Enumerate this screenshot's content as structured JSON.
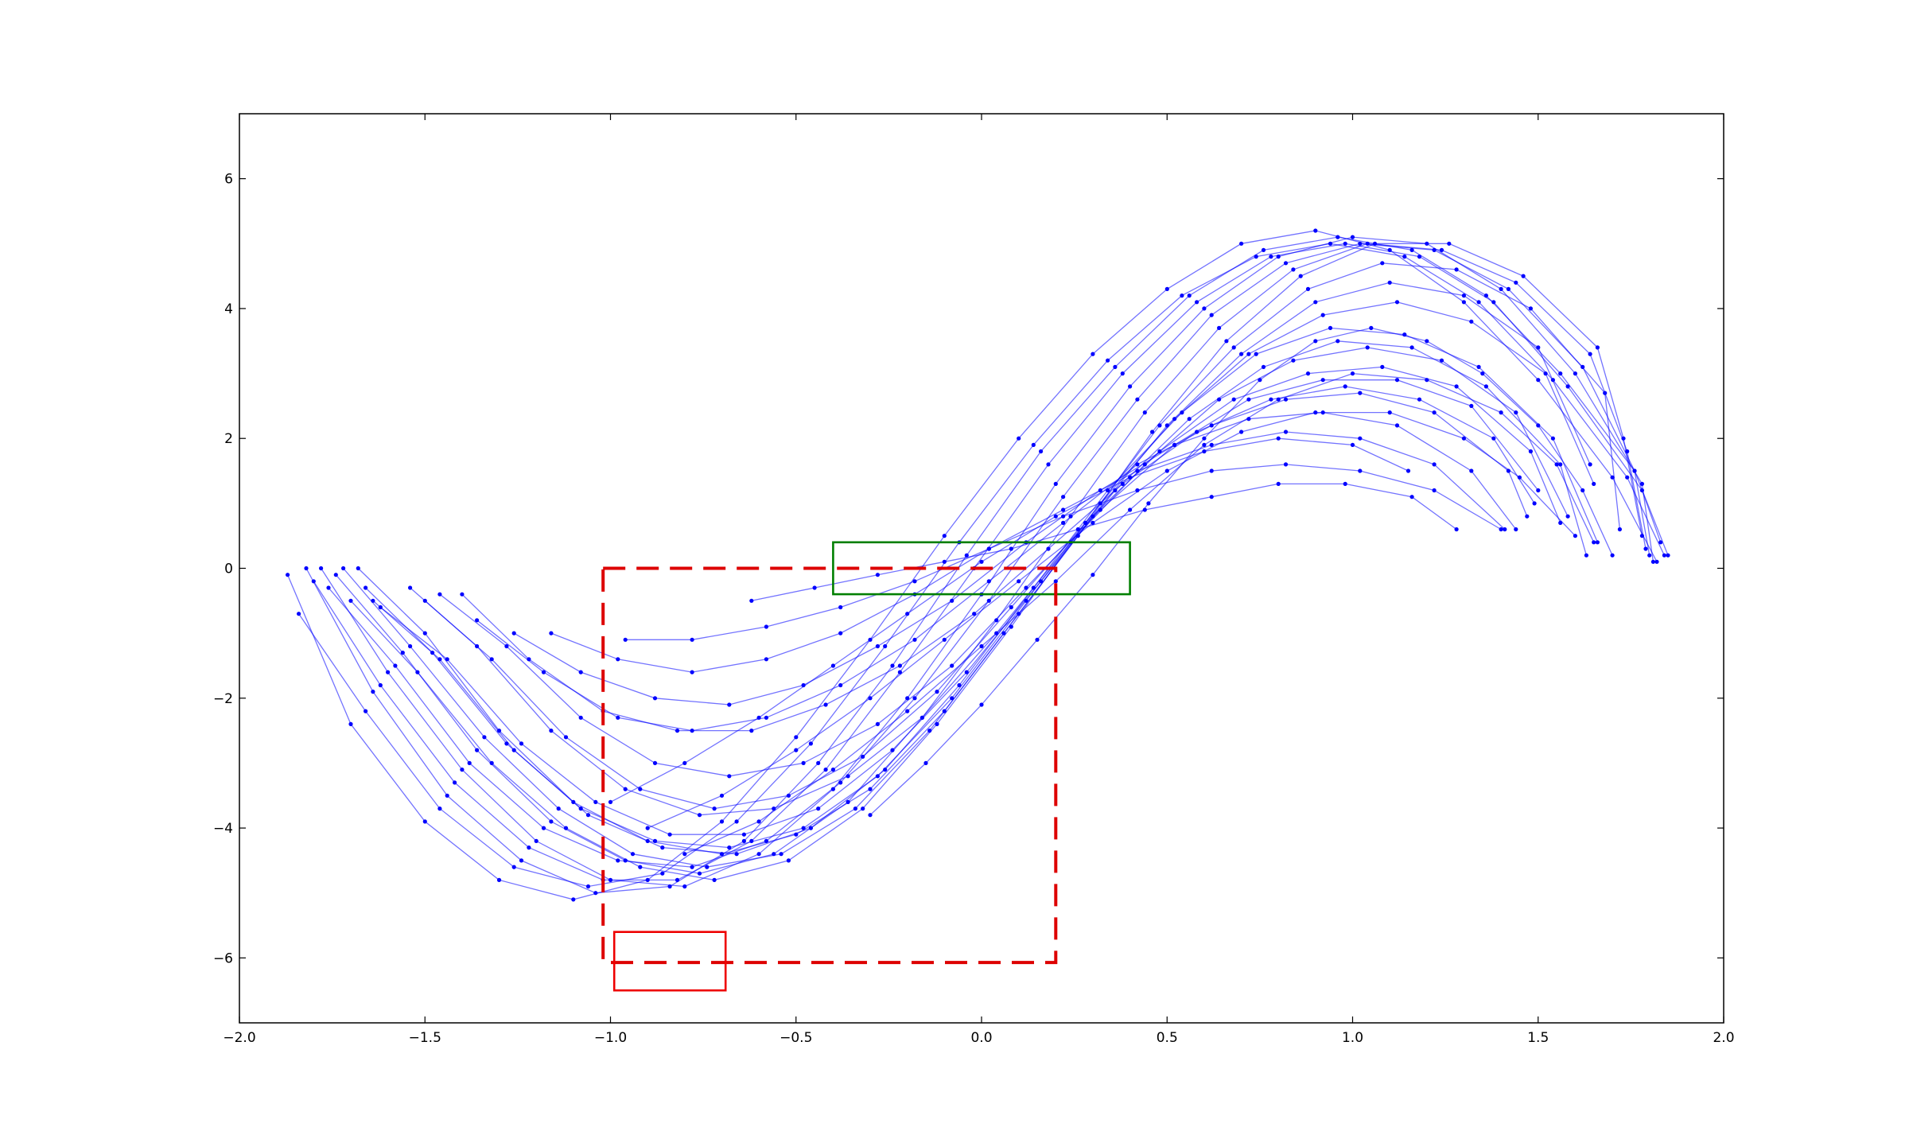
{
  "chart_data": {
    "type": "line",
    "title": "",
    "xlabel": "",
    "ylabel": "",
    "xlim": [
      -2.0,
      2.0
    ],
    "ylim": [
      -7,
      7
    ],
    "grid": false,
    "x_ticks": [
      -2.0,
      -1.5,
      -1.0,
      -0.5,
      0.0,
      0.5,
      1.0,
      1.5,
      2.0
    ],
    "x_tick_labels": [
      "−2.0",
      "−1.5",
      "−1.0",
      "−0.5",
      "0.0",
      "0.5",
      "1.0",
      "1.5",
      "2.0"
    ],
    "y_ticks": [
      -6,
      -4,
      -2,
      0,
      2,
      4,
      6
    ],
    "y_tick_labels": [
      "−6",
      "−4",
      "−2",
      "0",
      "2",
      "4",
      "6"
    ],
    "curve_family": {
      "description_visible": false,
      "color": "#0000ff",
      "marker": "dot",
      "series": [
        {
          "x": [
            -1.87,
            -1.7,
            -1.5,
            -1.3,
            -1.1,
            -0.9,
            -0.7,
            -0.5,
            -0.3,
            -0.1,
            0.1,
            0.3,
            0.5,
            0.7,
            0.9,
            1.1,
            1.3,
            1.5,
            1.7,
            1.82
          ],
          "y": [
            -0.1,
            -2.4,
            -3.9,
            -4.8,
            -5.1,
            -4.8,
            -3.9,
            -2.6,
            -1.1,
            0.5,
            2.0,
            3.3,
            4.3,
            5.0,
            5.2,
            4.9,
            4.1,
            2.9,
            1.4,
            0.1
          ]
        },
        {
          "x": [
            -1.84,
            -1.66,
            -1.46,
            -1.26,
            -1.06,
            -0.86,
            -0.66,
            -0.46,
            -0.26,
            -0.06,
            0.14,
            0.34,
            0.54,
            0.74,
            0.94,
            1.14,
            1.34,
            1.54,
            1.74,
            1.84
          ],
          "y": [
            -0.7,
            -2.2,
            -3.7,
            -4.6,
            -4.9,
            -4.7,
            -3.9,
            -2.7,
            -1.2,
            0.4,
            1.9,
            3.2,
            4.2,
            4.8,
            5.0,
            4.8,
            4.1,
            2.9,
            1.4,
            0.2
          ]
        },
        {
          "x": [
            -1.82,
            -1.64,
            -1.44,
            -1.24,
            -1.04,
            -0.84,
            -0.64,
            -0.44,
            -0.24,
            -0.04,
            0.16,
            0.36,
            0.56,
            0.76,
            0.96,
            1.16,
            1.36,
            1.56,
            1.76,
            1.85
          ],
          "y": [
            0.0,
            -1.9,
            -3.5,
            -4.5,
            -5.0,
            -4.9,
            -4.2,
            -3.0,
            -1.5,
            0.2,
            1.8,
            3.1,
            4.2,
            4.9,
            5.1,
            4.9,
            4.2,
            3.0,
            1.5,
            0.2
          ]
        },
        {
          "x": [
            -1.8,
            -1.62,
            -1.42,
            -1.22,
            -1.02,
            -0.82,
            -0.62,
            -0.42,
            -0.22,
            -0.02,
            0.18,
            0.38,
            0.58,
            0.78,
            0.98,
            1.18,
            1.38,
            1.58,
            1.78,
            1.83
          ],
          "y": [
            -0.2,
            -1.8,
            -3.3,
            -4.3,
            -4.8,
            -4.8,
            -4.2,
            -3.1,
            -1.6,
            0.0,
            1.6,
            3.0,
            4.1,
            4.8,
            5.0,
            4.8,
            4.1,
            2.8,
            1.2,
            0.4
          ]
        },
        {
          "x": [
            -1.78,
            -1.6,
            -1.4,
            -1.2,
            -1.0,
            -0.8,
            -0.6,
            -0.4,
            -0.2,
            0.0,
            0.2,
            0.4,
            0.6,
            0.8,
            1.0,
            1.2,
            1.4,
            1.6,
            1.78,
            1.81
          ],
          "y": [
            0.0,
            -1.6,
            -3.1,
            -4.2,
            -4.8,
            -4.9,
            -4.4,
            -3.4,
            -2.0,
            -0.4,
            1.3,
            2.8,
            4.0,
            4.8,
            5.1,
            5.0,
            4.3,
            3.0,
            1.3,
            0.1
          ]
        },
        {
          "x": [
            -1.76,
            -1.58,
            -1.38,
            -1.18,
            -0.98,
            -0.78,
            -0.58,
            -0.38,
            -0.18,
            0.02,
            0.22,
            0.42,
            0.62,
            0.82,
            1.02,
            1.22,
            1.42,
            1.62,
            1.76,
            1.8
          ],
          "y": [
            -0.3,
            -1.5,
            -3.0,
            -4.0,
            -4.5,
            -4.6,
            -4.2,
            -3.3,
            -2.0,
            -0.5,
            1.1,
            2.6,
            3.9,
            4.7,
            5.0,
            4.9,
            4.3,
            3.1,
            1.5,
            0.2
          ]
        },
        {
          "x": [
            -1.74,
            -1.56,
            -1.36,
            -1.16,
            -0.96,
            -0.76,
            -0.56,
            -0.36,
            -0.16,
            0.04,
            0.24,
            0.44,
            0.64,
            0.84,
            1.04,
            1.24,
            1.44,
            1.64,
            1.74,
            1.79
          ],
          "y": [
            -0.1,
            -1.3,
            -2.8,
            -3.9,
            -4.5,
            -4.7,
            -4.4,
            -3.6,
            -2.3,
            -0.8,
            0.8,
            2.4,
            3.7,
            4.6,
            5.0,
            4.9,
            4.4,
            3.3,
            1.8,
            0.3
          ]
        },
        {
          "x": [
            -1.72,
            -1.54,
            -1.34,
            -1.14,
            -0.94,
            -0.74,
            -0.54,
            -0.34,
            -0.14,
            0.06,
            0.26,
            0.46,
            0.66,
            0.86,
            1.06,
            1.26,
            1.46,
            1.66,
            1.73,
            1.78
          ],
          "y": [
            0.0,
            -1.2,
            -2.6,
            -3.7,
            -4.4,
            -4.6,
            -4.4,
            -3.7,
            -2.5,
            -1.0,
            0.5,
            2.1,
            3.5,
            4.5,
            5.0,
            5.0,
            4.5,
            3.4,
            2.0,
            0.5
          ]
        },
        {
          "x": [
            -1.7,
            -1.52,
            -1.32,
            -1.12,
            -0.92,
            -0.72,
            -0.52,
            -0.32,
            -0.12,
            0.08,
            0.28,
            0.48,
            0.68,
            0.88,
            1.08,
            1.28,
            1.48,
            1.68,
            1.72
          ],
          "y": [
            -0.5,
            -1.6,
            -3.0,
            -4.0,
            -4.6,
            -4.8,
            -4.5,
            -3.7,
            -2.4,
            -0.9,
            0.7,
            2.2,
            3.4,
            4.3,
            4.7,
            4.6,
            4.0,
            2.7,
            0.6
          ]
        },
        {
          "x": [
            -1.68,
            -1.5,
            -1.3,
            -1.1,
            -0.9,
            -0.7,
            -0.5,
            -0.3,
            -0.1,
            0.1,
            0.3,
            0.5,
            0.7,
            0.9,
            1.1,
            1.3,
            1.5,
            1.64
          ],
          "y": [
            0.0,
            -1.0,
            -2.5,
            -3.6,
            -4.2,
            -4.4,
            -4.1,
            -3.4,
            -2.2,
            -0.7,
            0.8,
            2.2,
            3.3,
            4.1,
            4.4,
            4.2,
            3.4,
            1.6
          ]
        },
        {
          "x": [
            -1.66,
            -1.48,
            -1.28,
            -1.08,
            -0.88,
            -0.68,
            -0.48,
            -0.28,
            -0.08,
            0.12,
            0.32,
            0.52,
            0.72,
            0.92,
            1.12,
            1.32,
            1.52,
            1.65
          ],
          "y": [
            -0.3,
            -1.3,
            -2.7,
            -3.7,
            -4.2,
            -4.3,
            -4.0,
            -3.2,
            -2.0,
            -0.5,
            1.0,
            2.3,
            3.3,
            3.9,
            4.1,
            3.8,
            3.0,
            1.3
          ]
        },
        {
          "x": [
            -1.64,
            -1.46,
            -1.26,
            -1.06,
            -0.86,
            -0.66,
            -0.46,
            -0.26,
            -0.06,
            0.14,
            0.34,
            0.54,
            0.74,
            0.94,
            1.14,
            1.34,
            1.54,
            1.66
          ],
          "y": [
            -0.5,
            -1.4,
            -2.8,
            -3.8,
            -4.3,
            -4.4,
            -4.0,
            -3.1,
            -1.8,
            -0.3,
            1.2,
            2.4,
            3.3,
            3.7,
            3.6,
            3.1,
            2.0,
            0.4
          ]
        },
        {
          "x": [
            -1.62,
            -1.44,
            -1.24,
            -1.04,
            -0.84,
            -0.64,
            -0.44,
            -0.24,
            -0.04,
            0.16,
            0.36,
            0.56,
            0.76,
            0.96,
            1.16,
            1.36,
            1.56,
            1.63
          ],
          "y": [
            -0.6,
            -1.4,
            -2.7,
            -3.6,
            -4.1,
            -4.1,
            -3.7,
            -2.8,
            -1.6,
            -0.2,
            1.2,
            2.3,
            3.1,
            3.5,
            3.4,
            2.8,
            1.6,
            0.2
          ]
        },
        {
          "x": [
            -1.54,
            -1.36,
            -1.16,
            -0.96,
            -0.76,
            -0.56,
            -0.36,
            -0.16,
            0.04,
            0.24,
            0.44,
            0.64,
            0.84,
            1.04,
            1.24,
            1.44,
            1.58
          ],
          "y": [
            -0.3,
            -1.2,
            -2.5,
            -3.4,
            -3.8,
            -3.7,
            -3.2,
            -2.3,
            -1.0,
            0.4,
            1.6,
            2.6,
            3.2,
            3.4,
            3.2,
            2.4,
            0.8
          ]
        },
        {
          "x": [
            -1.5,
            -1.32,
            -1.12,
            -0.92,
            -0.72,
            -0.52,
            -0.32,
            -0.12,
            0.08,
            0.28,
            0.48,
            0.68,
            0.88,
            1.08,
            1.28,
            1.48,
            1.56
          ],
          "y": [
            -0.5,
            -1.4,
            -2.6,
            -3.4,
            -3.7,
            -3.5,
            -2.9,
            -1.9,
            -0.6,
            0.7,
            1.8,
            2.6,
            3.0,
            3.1,
            2.8,
            1.8,
            0.7
          ]
        },
        {
          "x": [
            -1.46,
            -1.28,
            -1.08,
            -0.88,
            -0.68,
            -0.48,
            -0.28,
            -0.08,
            0.12,
            0.32,
            0.52,
            0.72,
            0.92,
            1.12,
            1.32,
            1.5
          ],
          "y": [
            -0.4,
            -1.2,
            -2.3,
            -3.0,
            -3.2,
            -3.0,
            -2.4,
            -1.5,
            -0.3,
            0.9,
            1.9,
            2.6,
            2.9,
            2.9,
            2.5,
            1.2
          ]
        },
        {
          "x": [
            -1.4,
            -1.22,
            -1.02,
            -0.82,
            -0.62,
            -0.42,
            -0.22,
            -0.02,
            0.18,
            0.38,
            0.58,
            0.78,
            0.98,
            1.18,
            1.38,
            1.49
          ],
          "y": [
            -0.4,
            -1.4,
            -2.2,
            -2.5,
            -2.5,
            -2.1,
            -1.5,
            -0.7,
            0.3,
            1.3,
            2.1,
            2.6,
            2.8,
            2.6,
            2.0,
            1.0
          ]
        },
        {
          "x": [
            -1.36,
            -1.18,
            -0.98,
            -0.78,
            -0.58,
            -0.38,
            -0.18,
            0.02,
            0.22,
            0.42,
            0.62,
            0.82,
            1.02,
            1.22,
            1.42,
            1.47
          ],
          "y": [
            -0.8,
            -1.6,
            -2.3,
            -2.5,
            -2.3,
            -1.8,
            -1.1,
            -0.2,
            0.7,
            1.6,
            2.2,
            2.6,
            2.7,
            2.4,
            1.5,
            0.8
          ]
        },
        {
          "x": [
            -1.26,
            -1.08,
            -0.88,
            -0.68,
            -0.48,
            -0.28,
            -0.08,
            0.12,
            0.32,
            0.52,
            0.72,
            0.92,
            1.12,
            1.32,
            1.44
          ],
          "y": [
            -1.0,
            -1.6,
            -2.0,
            -2.1,
            -1.8,
            -1.2,
            -0.5,
            0.4,
            1.2,
            1.9,
            2.3,
            2.4,
            2.2,
            1.5,
            0.6
          ]
        },
        {
          "x": [
            -1.16,
            -0.98,
            -0.78,
            -0.58,
            -0.38,
            -0.18,
            0.02,
            0.22,
            0.42,
            0.62,
            0.82,
            1.02,
            1.22,
            1.41
          ],
          "y": [
            -1.0,
            -1.4,
            -1.6,
            -1.4,
            -1.0,
            -0.4,
            0.3,
            0.9,
            1.5,
            1.9,
            2.1,
            2.0,
            1.6,
            0.6
          ]
        },
        {
          "x": [
            -0.96,
            -0.78,
            -0.58,
            -0.38,
            -0.18,
            0.02,
            0.22,
            0.42,
            0.62,
            0.82,
            1.02,
            1.22,
            1.4
          ],
          "y": [
            -1.1,
            -1.1,
            -0.9,
            -0.6,
            -0.2,
            0.3,
            0.8,
            1.2,
            1.5,
            1.6,
            1.5,
            1.2,
            0.6
          ]
        },
        {
          "x": [
            -0.62,
            -0.45,
            -0.28,
            -0.1,
            0.08,
            0.26,
            0.44,
            0.62,
            0.8,
            0.98,
            1.16,
            1.28
          ],
          "y": [
            -0.5,
            -0.3,
            -0.1,
            0.1,
            0.3,
            0.6,
            0.9,
            1.1,
            1.3,
            1.3,
            1.1,
            0.6
          ]
        },
        {
          "x": [
            -1.0,
            -0.8,
            -0.6,
            -0.4,
            -0.2,
            0.0,
            0.2,
            0.4,
            0.6,
            0.8,
            1.0,
            1.15
          ],
          "y": [
            -3.6,
            -3.0,
            -2.3,
            -1.5,
            -0.7,
            0.1,
            0.8,
            1.4,
            1.8,
            2.0,
            1.9,
            1.5
          ]
        },
        {
          "x": [
            -0.9,
            -0.7,
            -0.5,
            -0.3,
            -0.1,
            0.1,
            0.3,
            0.5,
            0.7,
            0.9,
            1.1,
            1.3,
            1.45,
            1.6
          ],
          "y": [
            -4.0,
            -3.5,
            -2.8,
            -2.0,
            -1.1,
            -0.2,
            0.7,
            1.5,
            2.1,
            2.4,
            2.4,
            2.0,
            1.4,
            0.5
          ]
        },
        {
          "x": [
            -0.8,
            -0.6,
            -0.4,
            -0.2,
            0.0,
            0.2,
            0.4,
            0.6,
            0.8,
            1.0,
            1.2,
            1.4,
            1.55,
            1.65
          ],
          "y": [
            -4.4,
            -3.9,
            -3.1,
            -2.2,
            -1.2,
            -0.2,
            0.9,
            1.9,
            2.6,
            3.0,
            2.9,
            2.4,
            1.6,
            0.4
          ]
        },
        {
          "x": [
            -0.3,
            -0.15,
            0.0,
            0.15,
            0.3,
            0.45,
            0.6,
            0.75,
            0.9,
            1.05,
            1.2,
            1.35,
            1.5,
            1.62,
            1.7
          ],
          "y": [
            -3.8,
            -3.0,
            -2.1,
            -1.1,
            -0.1,
            1.0,
            2.0,
            2.9,
            3.5,
            3.7,
            3.5,
            3.0,
            2.2,
            1.2,
            0.2
          ]
        }
      ]
    },
    "regions": [
      {
        "label": "green-box",
        "x": [
          -0.4,
          0.4
        ],
        "y": [
          -0.4,
          0.4
        ],
        "color": "#007f00",
        "style": "solid"
      },
      {
        "label": "red-dashed-box",
        "x": [
          -1.02,
          0.2
        ],
        "y": [
          -6.07,
          0.0
        ],
        "color": "#dd0000",
        "style": "dashed"
      },
      {
        "label": "red-small-box",
        "x": [
          -0.99,
          -0.69
        ],
        "y": [
          -6.5,
          -5.6
        ],
        "color": "#ee0000",
        "style": "solid"
      }
    ]
  }
}
